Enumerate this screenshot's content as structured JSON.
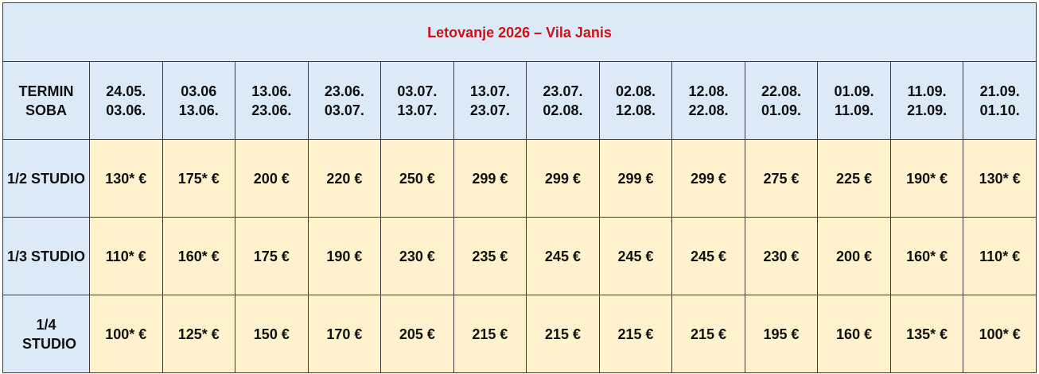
{
  "title": "Letovanje 2026 – Vila Janis",
  "header": [
    [
      "TERMIN",
      "SOBA"
    ],
    [
      "24.05.",
      "03.06."
    ],
    [
      "03.06",
      "13.06."
    ],
    [
      "13.06.",
      "23.06."
    ],
    [
      "23.06.",
      "03.07."
    ],
    [
      "03.07.",
      "13.07."
    ],
    [
      "13.07.",
      "23.07."
    ],
    [
      "23.07.",
      "02.08."
    ],
    [
      "02.08.",
      "12.08."
    ],
    [
      "12.08.",
      "22.08."
    ],
    [
      "22.08.",
      "01.09."
    ],
    [
      "01.09.",
      "11.09."
    ],
    [
      "11.09.",
      "21.09."
    ],
    [
      "21.09.",
      "01.10."
    ]
  ],
  "rows": [
    {
      "label": "1/2 STUDIO",
      "cells": [
        "130* €",
        "175* €",
        "200 €",
        "220 €",
        "250 €",
        "299 €",
        "299 €",
        "299 €",
        "299 €",
        "275 €",
        "225 €",
        "190* €",
        "130* €"
      ]
    },
    {
      "label": "1/3 STUDIO",
      "cells": [
        "110* €",
        "160* €",
        "175 €",
        "190 €",
        "230 €",
        "235 €",
        "245 €",
        "245 €",
        "245 €",
        "230 €",
        "200 €",
        "160* €",
        "110* €"
      ]
    },
    {
      "label": "1/4 STUDIO",
      "cells": [
        "100* €",
        "125* €",
        "150 €",
        "170 €",
        "205 €",
        "215 €",
        "215 €",
        "215 €",
        "215 €",
        "195 €",
        "160 €",
        "135* €",
        "100* €"
      ]
    }
  ]
}
